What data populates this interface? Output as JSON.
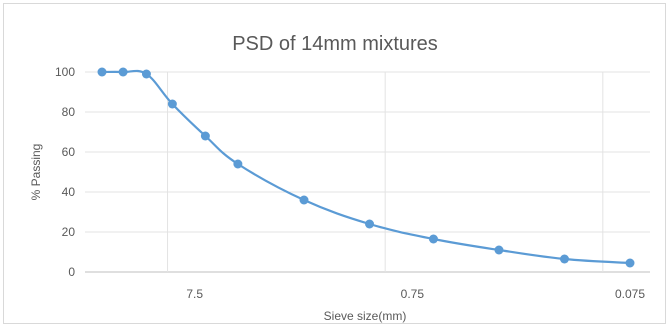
{
  "chart_data": {
    "type": "line",
    "title": "PSD of 14mm mixtures",
    "xlabel": "Sieve size(mm)",
    "ylabel": "% Passing",
    "x_scale": "log",
    "x_reversed": true,
    "xlim": [
      20,
      0.075
    ],
    "ylim": [
      0,
      100
    ],
    "y_ticks": [
      0,
      20,
      40,
      60,
      80,
      100
    ],
    "x_tick_labels": [
      {
        "x": 7.5,
        "label": "7.5"
      },
      {
        "x": 0.75,
        "label": "0.75"
      },
      {
        "x": 0.075,
        "label": "0.075"
      }
    ],
    "grid": true,
    "series": [
      {
        "color": "#5b9bd5",
        "x": [
          20,
          16,
          12.5,
          9.5,
          6.7,
          4.75,
          2.36,
          1.18,
          0.6,
          0.3,
          0.15,
          0.075
        ],
        "values": [
          100,
          100,
          99,
          84,
          68,
          54,
          36,
          24,
          16.5,
          11,
          6.5,
          4.5
        ]
      }
    ]
  }
}
